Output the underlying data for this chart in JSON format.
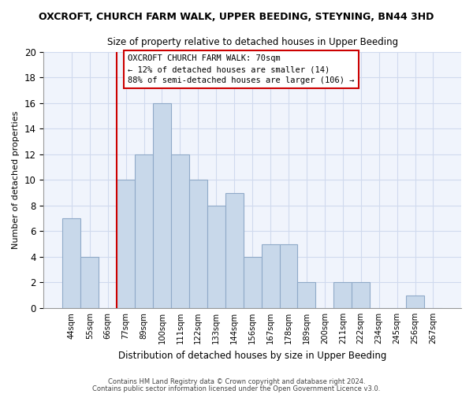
{
  "title": "OXCROFT, CHURCH FARM WALK, UPPER BEEDING, STEYNING, BN44 3HD",
  "subtitle": "Size of property relative to detached houses in Upper Beeding",
  "xlabel": "Distribution of detached houses by size in Upper Beeding",
  "ylabel": "Number of detached properties",
  "bar_labels": [
    "44sqm",
    "55sqm",
    "66sqm",
    "77sqm",
    "89sqm",
    "100sqm",
    "111sqm",
    "122sqm",
    "133sqm",
    "144sqm",
    "156sqm",
    "167sqm",
    "178sqm",
    "189sqm",
    "200sqm",
    "211sqm",
    "222sqm",
    "234sqm",
    "245sqm",
    "256sqm",
    "267sqm"
  ],
  "bar_heights": [
    7,
    4,
    0,
    10,
    12,
    16,
    12,
    10,
    8,
    9,
    4,
    5,
    5,
    2,
    0,
    2,
    2,
    0,
    0,
    1,
    0
  ],
  "bar_color": "#c8d8ea",
  "bar_edge_color": "#90aac8",
  "vline_color": "#cc0000",
  "vline_index": 2.5,
  "ylim": [
    0,
    20
  ],
  "yticks": [
    0,
    2,
    4,
    6,
    8,
    10,
    12,
    14,
    16,
    18,
    20
  ],
  "annotation_title": "OXCROFT CHURCH FARM WALK: 70sqm",
  "annotation_line1": "← 12% of detached houses are smaller (14)",
  "annotation_line2": "88% of semi-detached houses are larger (106) →",
  "annotation_box_color": "#ffffff",
  "annotation_box_edge": "#cc0000",
  "footer1": "Contains HM Land Registry data © Crown copyright and database right 2024.",
  "footer2": "Contains public sector information licensed under the Open Government Licence v3.0.",
  "grid_color": "#d0daee",
  "bg_color": "#f0f4fc"
}
